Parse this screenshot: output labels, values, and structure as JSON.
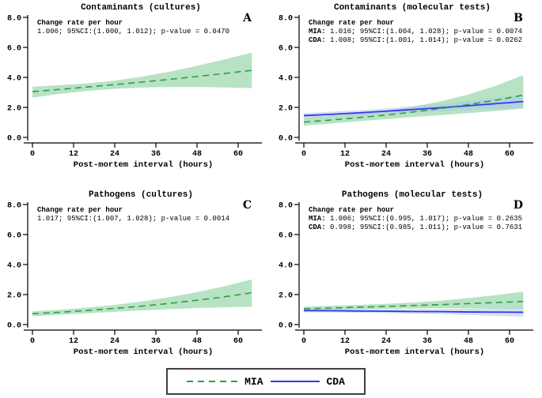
{
  "page": {
    "background": "#ffffff"
  },
  "colors": {
    "title_navy": "#1a3a66",
    "mia_green": "#2e9e44",
    "mia_band": "#9fd9b0",
    "cda_blue": "#3535ee",
    "cda_band": "#a9c6e8",
    "axis": "#000000",
    "legend_border": "#3f3f3f"
  },
  "legend": {
    "items": [
      {
        "label": "MIA",
        "style": "dashed",
        "color": "#2e9e44"
      },
      {
        "label": "CDA",
        "style": "solid",
        "color": "#3535ee"
      }
    ]
  },
  "chart_data": [
    {
      "type": "line",
      "panel_letter": "A",
      "title": "Contaminants (cultures)",
      "xlabel": "Post-mortem interval (hours)",
      "x_ticks": [
        0,
        12,
        24,
        36,
        48,
        60
      ],
      "y_tick_labels": [
        "0.0",
        "2.0",
        "4.0",
        "6.0",
        "8.0"
      ],
      "y_tick_values": [
        0,
        2,
        4,
        6,
        8
      ],
      "ylim": [
        0,
        8
      ],
      "xlim": [
        0,
        67
      ],
      "annotation": {
        "header": "Change rate per hour",
        "lines": [
          {
            "prefix": "",
            "text": "1.006; 95%CI:(1.000, 1.012); p-value = 0.0470"
          }
        ]
      },
      "series": [
        {
          "name": "MIA",
          "line_style": "dashed",
          "color_key": "mia_green",
          "band_key": "mia_band",
          "x": [
            0,
            8,
            16,
            24,
            32,
            40,
            48,
            56,
            64
          ],
          "y": [
            3.05,
            3.2,
            3.36,
            3.52,
            3.69,
            3.87,
            4.06,
            4.26,
            4.47
          ],
          "ci_lo": [
            2.65,
            2.9,
            3.1,
            3.24,
            3.32,
            3.36,
            3.36,
            3.33,
            3.28
          ],
          "ci_hi": [
            3.38,
            3.48,
            3.6,
            3.78,
            4.05,
            4.38,
            4.77,
            5.2,
            5.66
          ]
        }
      ]
    },
    {
      "type": "line",
      "panel_letter": "B",
      "title": "Contaminants (molecular tests)",
      "xlabel": "Post-mortem interval (hours)",
      "x_ticks": [
        0,
        12,
        24,
        36,
        48,
        60
      ],
      "y_tick_labels": [
        "0.0",
        "2.0",
        "4.0",
        "6.0",
        "8.0"
      ],
      "y_tick_values": [
        0,
        2,
        4,
        6,
        8
      ],
      "ylim": [
        0,
        8
      ],
      "xlim": [
        0,
        67
      ],
      "annotation": {
        "header": "Change rate per hour",
        "lines": [
          {
            "prefix": "MIA:",
            "text": " 1.016; 95%CI:(1.004, 1.028); p-value = 0.0074"
          },
          {
            "prefix": "CDA:",
            "text": " 1.008; 95%CI:(1.001, 1.014); p-value = 0.0262"
          }
        ]
      },
      "series": [
        {
          "name": "MIA",
          "line_style": "dashed",
          "color_key": "mia_green",
          "band_key": "mia_band",
          "x": [
            0,
            8,
            16,
            24,
            32,
            40,
            48,
            56,
            64
          ],
          "y": [
            1.02,
            1.16,
            1.32,
            1.49,
            1.7,
            1.93,
            2.19,
            2.48,
            2.82
          ],
          "ci_lo": [
            0.78,
            0.93,
            1.08,
            1.22,
            1.36,
            1.49,
            1.62,
            1.76,
            1.92
          ],
          "ci_hi": [
            1.32,
            1.44,
            1.59,
            1.79,
            2.06,
            2.41,
            2.86,
            3.44,
            4.15
          ]
        },
        {
          "name": "CDA",
          "line_style": "solid",
          "color_key": "cda_blue",
          "band_key": "cda_band",
          "x": [
            0,
            8,
            16,
            24,
            32,
            40,
            48,
            56,
            64
          ],
          "y": [
            1.45,
            1.54,
            1.64,
            1.75,
            1.86,
            1.98,
            2.11,
            2.25,
            2.39
          ],
          "ci_lo": [
            1.28,
            1.38,
            1.47,
            1.57,
            1.66,
            1.75,
            1.83,
            1.9,
            1.97
          ],
          "ci_hi": [
            1.62,
            1.71,
            1.81,
            1.93,
            2.07,
            2.23,
            2.41,
            2.61,
            2.82
          ]
        }
      ]
    },
    {
      "type": "line",
      "panel_letter": "C",
      "title": "Pathogens (cultures)",
      "xlabel": "Post-mortem interval (hours)",
      "x_ticks": [
        0,
        12,
        24,
        36,
        48,
        60
      ],
      "y_tick_labels": [
        "0.0",
        "2.0",
        "4.0",
        "6.0",
        "8.0"
      ],
      "y_tick_values": [
        0,
        2,
        4,
        6,
        8
      ],
      "ylim": [
        0,
        8
      ],
      "xlim": [
        0,
        67
      ],
      "annotation": {
        "header": "Change rate per hour",
        "lines": [
          {
            "prefix": "",
            "text": "1.017; 95%CI:(1.007, 1.028); p-value = 0.0014"
          }
        ]
      },
      "series": [
        {
          "name": "MIA",
          "line_style": "dashed",
          "color_key": "mia_green",
          "band_key": "mia_band",
          "x": [
            0,
            8,
            16,
            24,
            32,
            40,
            48,
            56,
            64
          ],
          "y": [
            0.72,
            0.82,
            0.94,
            1.08,
            1.23,
            1.41,
            1.62,
            1.85,
            2.12
          ],
          "ci_lo": [
            0.55,
            0.65,
            0.75,
            0.85,
            0.95,
            1.03,
            1.1,
            1.15,
            1.19
          ],
          "ci_hi": [
            0.88,
            0.99,
            1.13,
            1.31,
            1.54,
            1.82,
            2.16,
            2.55,
            3.01
          ]
        }
      ]
    },
    {
      "type": "line",
      "panel_letter": "D",
      "title": "Pathogens (molecular tests)",
      "xlabel": "Post-mortem interval (hours)",
      "x_ticks": [
        0,
        12,
        24,
        36,
        48,
        60
      ],
      "y_tick_labels": [
        "0.0",
        "2.0",
        "4.0",
        "6.0",
        "8.0"
      ],
      "y_tick_values": [
        0,
        2,
        4,
        6,
        8
      ],
      "ylim": [
        0,
        8
      ],
      "xlim": [
        0,
        67
      ],
      "annotation": {
        "header": "Change rate per hour",
        "lines": [
          {
            "prefix": "MIA:",
            "text": " 1.006; 95%CI:(0.995, 1.017); p-value = 0.2635"
          },
          {
            "prefix": "CDA:",
            "text": " 0.998; 95%CI:(0.985, 1.011); p-value = 0.7631"
          }
        ]
      },
      "series": [
        {
          "name": "MIA",
          "line_style": "dashed",
          "color_key": "mia_green",
          "band_key": "mia_band",
          "x": [
            0,
            8,
            16,
            24,
            32,
            40,
            48,
            56,
            64
          ],
          "y": [
            1.05,
            1.1,
            1.16,
            1.21,
            1.27,
            1.33,
            1.4,
            1.47,
            1.54
          ],
          "ci_lo": [
            0.9,
            0.96,
            1.01,
            1.05,
            1.08,
            1.09,
            1.08,
            1.07,
            1.05
          ],
          "ci_hi": [
            1.2,
            1.25,
            1.31,
            1.38,
            1.47,
            1.59,
            1.76,
            1.96,
            2.2
          ]
        },
        {
          "name": "CDA",
          "line_style": "solid",
          "color_key": "cda_blue",
          "band_key": "cda_band",
          "x": [
            0,
            8,
            16,
            24,
            32,
            40,
            48,
            56,
            64
          ],
          "y": [
            0.93,
            0.92,
            0.9,
            0.89,
            0.87,
            0.86,
            0.84,
            0.83,
            0.82
          ],
          "ci_lo": [
            0.82,
            0.8,
            0.78,
            0.76,
            0.73,
            0.69,
            0.64,
            0.58,
            0.51
          ],
          "ci_hi": [
            1.04,
            1.04,
            1.03,
            1.02,
            1.02,
            1.03,
            1.05,
            1.09,
            1.14
          ]
        }
      ]
    }
  ]
}
